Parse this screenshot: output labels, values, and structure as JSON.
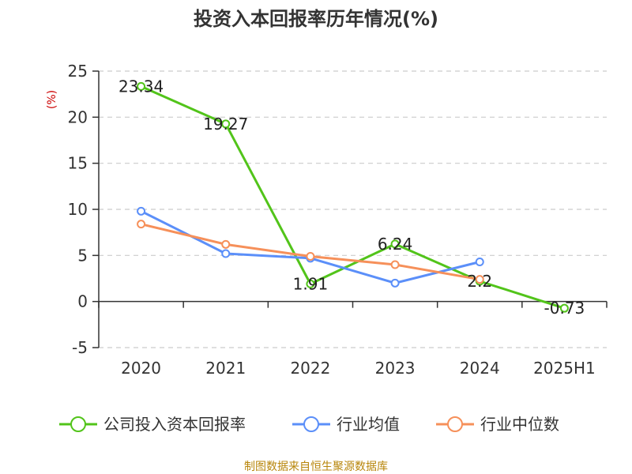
{
  "chart_data": {
    "type": "line",
    "title": "投资入本回报率历年情况(%)",
    "unit_label": "(%)",
    "categories": [
      "2020",
      "2021",
      "2022",
      "2023",
      "2024",
      "2025H1"
    ],
    "ylim": [
      -5,
      25
    ],
    "yticks": [
      -5,
      0,
      5,
      10,
      15,
      20,
      25
    ],
    "grid": true,
    "legend_position": "bottom",
    "series": [
      {
        "name": "公司投入资本回报率",
        "color": "#52c41a",
        "values": [
          23.34,
          19.27,
          1.91,
          6.24,
          2.2,
          -0.73
        ],
        "labels": [
          "23.34",
          "19.27",
          "1.91",
          "6.24",
          "2.2",
          "-0.73"
        ]
      },
      {
        "name": "行业均值",
        "color": "#5b8ff9",
        "values": [
          9.8,
          5.2,
          4.7,
          2.0,
          4.3,
          null
        ]
      },
      {
        "name": "行业中位数",
        "color": "#f6905a",
        "values": [
          8.4,
          6.2,
          4.9,
          4.0,
          2.4,
          null
        ]
      }
    ]
  },
  "source_text": "制图数据来自恒生聚源数据库"
}
